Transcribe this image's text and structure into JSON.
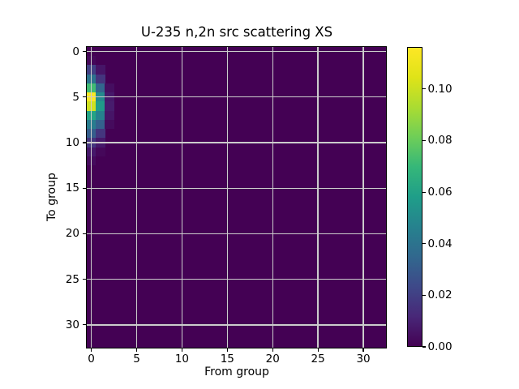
{
  "colors": {
    "figure_background": "#ffffff",
    "heatmap_zero": "#440154",
    "heatmap_max": "#fde725",
    "grid": "#cccccc",
    "spine": "#000000",
    "text": "#000000"
  },
  "chart_data": {
    "type": "heatmap",
    "title": "U-235 n,2n src scattering XS",
    "xlabel": "From group",
    "ylabel": "To group",
    "colormap": "viridis",
    "n_groups": 33,
    "x_axis_range": [
      -0.5,
      32.5
    ],
    "y_axis_range": [
      32.5,
      -0.5
    ],
    "vmin": 0.0,
    "vmax": 0.1163,
    "grid": "on",
    "x_ticks": [
      {
        "value": 0,
        "label": "0"
      },
      {
        "value": 5,
        "label": "5"
      },
      {
        "value": 10,
        "label": "10"
      },
      {
        "value": 15,
        "label": "15"
      },
      {
        "value": 20,
        "label": "20"
      },
      {
        "value": 25,
        "label": "25"
      },
      {
        "value": 30,
        "label": "30"
      }
    ],
    "y_ticks": [
      {
        "value": 0,
        "label": "0"
      },
      {
        "value": 5,
        "label": "5"
      },
      {
        "value": 10,
        "label": "10"
      },
      {
        "value": 15,
        "label": "15"
      },
      {
        "value": 20,
        "label": "20"
      },
      {
        "value": 25,
        "label": "25"
      },
      {
        "value": 30,
        "label": "30"
      }
    ],
    "colorbar_ticks": [
      {
        "value": 0.0,
        "label": "0.00"
      },
      {
        "value": 0.02,
        "label": "0.02"
      },
      {
        "value": 0.04,
        "label": "0.04"
      },
      {
        "value": 0.06,
        "label": "0.06"
      },
      {
        "value": 0.08,
        "label": "0.08"
      },
      {
        "value": 0.1,
        "label": "0.10"
      }
    ],
    "cells": [
      {
        "from": 0,
        "to": 1,
        "value": 0.002
      },
      {
        "from": 0,
        "to": 2,
        "value": 0.02
      },
      {
        "from": 0,
        "to": 3,
        "value": 0.04
      },
      {
        "from": 0,
        "to": 4,
        "value": 0.072
      },
      {
        "from": 0,
        "to": 5,
        "value": 0.115
      },
      {
        "from": 0,
        "to": 6,
        "value": 0.1
      },
      {
        "from": 0,
        "to": 7,
        "value": 0.061
      },
      {
        "from": 0,
        "to": 8,
        "value": 0.044
      },
      {
        "from": 0,
        "to": 9,
        "value": 0.031
      },
      {
        "from": 0,
        "to": 10,
        "value": 0.016
      },
      {
        "from": 0,
        "to": 11,
        "value": 0.007
      },
      {
        "from": 0,
        "to": 12,
        "value": 0.003
      },
      {
        "from": 1,
        "to": 2,
        "value": 0.006
      },
      {
        "from": 1,
        "to": 3,
        "value": 0.016
      },
      {
        "from": 1,
        "to": 4,
        "value": 0.034
      },
      {
        "from": 1,
        "to": 5,
        "value": 0.05
      },
      {
        "from": 1,
        "to": 6,
        "value": 0.057
      },
      {
        "from": 1,
        "to": 7,
        "value": 0.046
      },
      {
        "from": 1,
        "to": 8,
        "value": 0.032
      },
      {
        "from": 1,
        "to": 9,
        "value": 0.016
      },
      {
        "from": 1,
        "to": 10,
        "value": 0.007
      },
      {
        "from": 1,
        "to": 11,
        "value": 0.002
      },
      {
        "from": 2,
        "to": 4,
        "value": 0.004
      },
      {
        "from": 2,
        "to": 5,
        "value": 0.007
      },
      {
        "from": 2,
        "to": 6,
        "value": 0.008
      },
      {
        "from": 2,
        "to": 7,
        "value": 0.006
      },
      {
        "from": 2,
        "to": 8,
        "value": 0.003
      }
    ]
  }
}
